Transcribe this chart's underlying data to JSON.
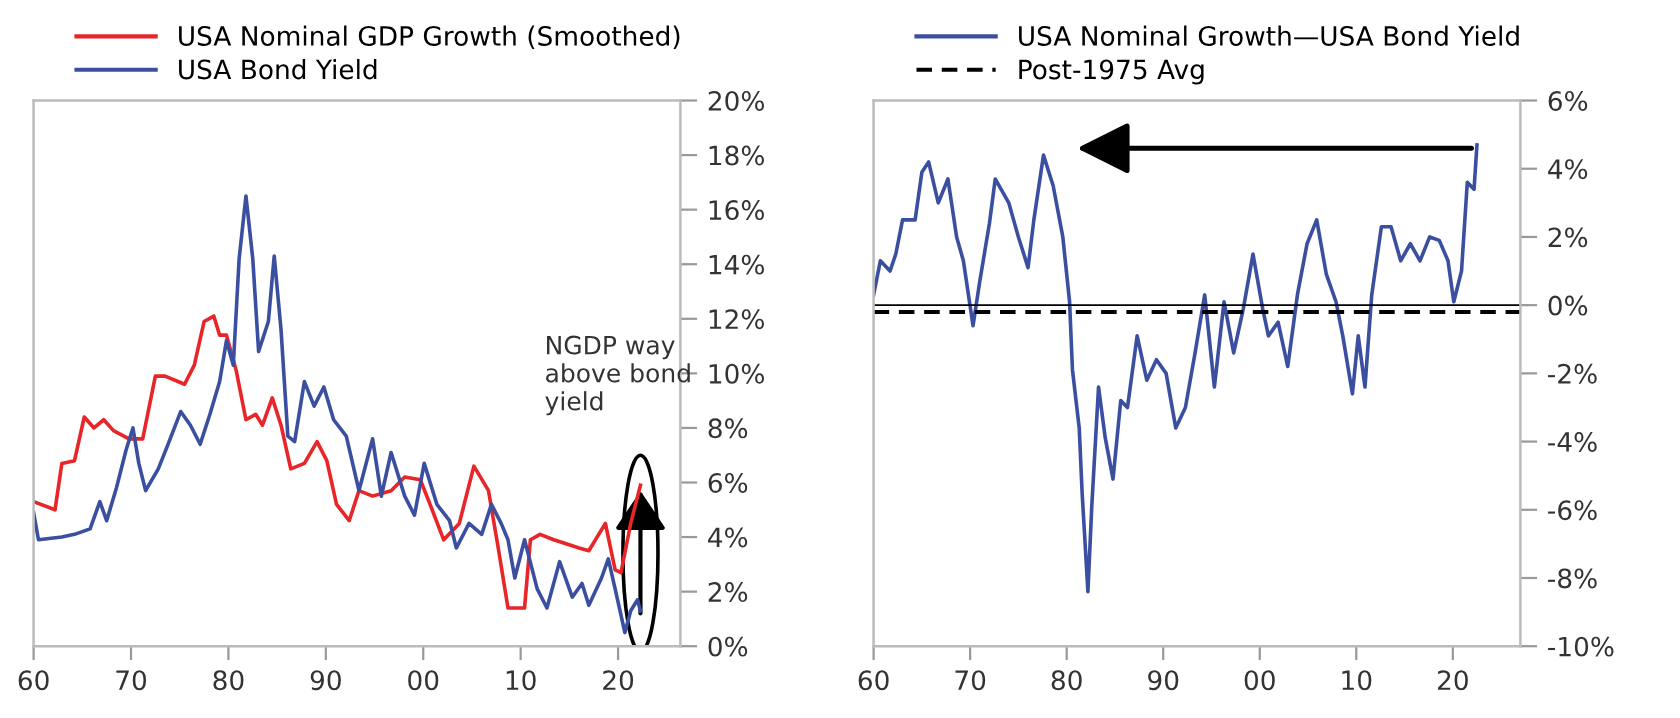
{
  "chart_data": [
    {
      "type": "line",
      "legend": "top",
      "xlim": [
        1960,
        2026.4
      ],
      "ylim": [
        0,
        20
      ],
      "xticks": [
        {
          "value": 1960,
          "label": "60"
        },
        {
          "value": 1970,
          "label": "70"
        },
        {
          "value": 1980,
          "label": "80"
        },
        {
          "value": 1990,
          "label": "90"
        },
        {
          "value": 2000,
          "label": "00"
        },
        {
          "value": 2010,
          "label": "10"
        },
        {
          "value": 2020,
          "label": "20"
        }
      ],
      "yticks": [
        {
          "value": 0,
          "label": "0%"
        },
        {
          "value": 2,
          "label": "2%"
        },
        {
          "value": 4,
          "label": "4%"
        },
        {
          "value": 6,
          "label": "6%"
        },
        {
          "value": 8,
          "label": "8%"
        },
        {
          "value": 10,
          "label": "10%"
        },
        {
          "value": 12,
          "label": "12%"
        },
        {
          "value": 14,
          "label": "14%"
        },
        {
          "value": 16,
          "label": "16%"
        },
        {
          "value": 18,
          "label": "18%"
        },
        {
          "value": 20,
          "label": "20%"
        }
      ],
      "annotations": [
        {
          "text": "NGDP way\nabove bond\nyield",
          "x": 2022.3,
          "y": 5.9
        }
      ],
      "series": [
        {
          "name": "USA Nominal GDP Growth (Smoothed)",
          "color": "#e8262a",
          "x": [
            1960,
            1962.2,
            1962.9,
            1964.2,
            1965.2,
            1966.2,
            1967.2,
            1968.2,
            1969.8,
            1971.2,
            1972.5,
            1973.5,
            1975.5,
            1976.5,
            1977.5,
            1978.5,
            1979.1,
            1979.8,
            1980.8,
            1981.8,
            1982.8,
            1983.5,
            1984.5,
            1985.4,
            1986.4,
            1987.8,
            1989.1,
            1990.1,
            1991.1,
            1992.4,
            1993.4,
            1994.8,
            1996.7,
            1998.1,
            1999.7,
            2000.7,
            2002.1,
            2003.7,
            2005.2,
            2006.7,
            2007.7,
            2008.7,
            2010.4,
            2011,
            2012,
            2013.4,
            2016,
            2017,
            2018.7,
            2019.7,
            2020.3,
            2021.3,
            2022.3
          ],
          "values": [
            5.3,
            5.0,
            6.7,
            6.8,
            8.4,
            8.0,
            8.3,
            7.9,
            7.6,
            7.6,
            9.9,
            9.9,
            9.6,
            10.3,
            11.9,
            12.1,
            11.4,
            11.4,
            10.1,
            8.3,
            8.5,
            8.1,
            9.1,
            8.1,
            6.5,
            6.7,
            7.5,
            6.8,
            5.2,
            4.6,
            5.7,
            5.5,
            5.7,
            6.2,
            6.1,
            5.2,
            3.9,
            4.5,
            6.6,
            5.7,
            3.6,
            1.4,
            1.4,
            3.9,
            4.1,
            3.9,
            3.6,
            3.5,
            4.5,
            2.8,
            2.7,
            4.5,
            5.9
          ]
        },
        {
          "name": "USA Bond Yield",
          "color": "#3b4fa0",
          "x": [
            1960,
            1960.5,
            1962.9,
            1964.2,
            1965.8,
            1966.8,
            1967.5,
            1968.5,
            1969.5,
            1970.2,
            1970.8,
            1971.5,
            1972.8,
            1973.8,
            1975.1,
            1976.1,
            1977.1,
            1978.1,
            1979.1,
            1979.8,
            1980.5,
            1981.1,
            1981.8,
            1982.5,
            1983.1,
            1984.1,
            1984.7,
            1985.4,
            1986.1,
            1986.8,
            1987.8,
            1988.8,
            1989.8,
            1990.8,
            1992.1,
            1993.4,
            1994.8,
            1995.7,
            1996.7,
            1998.1,
            1999.1,
            2000.1,
            2001.4,
            2002.7,
            2003.4,
            2004.7,
            2006,
            2007,
            2008,
            2008.7,
            2009.4,
            2010.4,
            2011.7,
            2012.7,
            2014,
            2015.3,
            2016.3,
            2017,
            2018.3,
            2019,
            2019.7,
            2020.7,
            2021.3,
            2022,
            2022.3
          ],
          "values": [
            4.9,
            3.9,
            4.0,
            4.1,
            4.3,
            5.3,
            4.6,
            5.8,
            7.2,
            8.0,
            6.7,
            5.7,
            6.5,
            7.4,
            8.6,
            8.1,
            7.4,
            8.5,
            9.7,
            11.2,
            10.3,
            14.2,
            16.5,
            14.2,
            10.8,
            11.9,
            14.3,
            11.6,
            7.7,
            7.5,
            9.7,
            8.8,
            9.5,
            8.3,
            7.7,
            5.7,
            7.6,
            5.5,
            7.1,
            5.5,
            4.8,
            6.7,
            5.2,
            4.6,
            3.6,
            4.5,
            4.1,
            5.2,
            4.5,
            3.9,
            2.5,
            3.9,
            2.1,
            1.4,
            3.1,
            1.8,
            2.3,
            1.5,
            2.5,
            3.2,
            2.1,
            0.5,
            1.3,
            1.7,
            1.3
          ]
        }
      ]
    },
    {
      "type": "line",
      "legend": "top",
      "xlim": [
        1960,
        2027
      ],
      "ylim": [
        -10,
        6
      ],
      "xticks": [
        {
          "value": 1960,
          "label": "60"
        },
        {
          "value": 1970,
          "label": "70"
        },
        {
          "value": 1980,
          "label": "80"
        },
        {
          "value": 1990,
          "label": "90"
        },
        {
          "value": 2000,
          "label": "00"
        },
        {
          "value": 2010,
          "label": "10"
        },
        {
          "value": 2020,
          "label": "20"
        }
      ],
      "yticks": [
        {
          "value": -10,
          "label": "-10%"
        },
        {
          "value": -8,
          "label": "-8%"
        },
        {
          "value": -6,
          "label": "-6%"
        },
        {
          "value": -4,
          "label": "-4%"
        },
        {
          "value": -2,
          "label": "-2%"
        },
        {
          "value": 0,
          "label": "0%"
        },
        {
          "value": 2,
          "label": "2%"
        },
        {
          "value": 4,
          "label": "4%"
        },
        {
          "value": 6,
          "label": "6%"
        }
      ],
      "ref_lines": [
        {
          "axis": "y",
          "value": 0,
          "color": "#000000",
          "line_style": "solid"
        },
        {
          "axis": "y",
          "value": -0.2,
          "label": "Post-1975 Avg",
          "color": "#000000",
          "line_style": "dashed"
        }
      ],
      "series": [
        {
          "name": "USA Nominal Growth—USA Bond Yield",
          "color": "#3b4fa0",
          "x": [
            1960,
            1960.7,
            1961.7,
            1962.3,
            1963,
            1964.3,
            1965,
            1965.7,
            1966.7,
            1967.7,
            1968.6,
            1969.3,
            1970.3,
            1971,
            1972,
            1972.6,
            1974,
            1975,
            1976,
            1976.6,
            1977.6,
            1978.6,
            1979.6,
            1980.3,
            1980.6,
            1981.3,
            1981.6,
            1982.2,
            1982.6,
            1983.3,
            1984,
            1984.8,
            1985.6,
            1986.3,
            1987.3,
            1988.3,
            1989.3,
            1990.3,
            1991.3,
            1992.3,
            1993.3,
            1994.3,
            1995.3,
            1996.3,
            1997.3,
            1998.3,
            1999.3,
            2000.3,
            2000.9,
            2001.9,
            2002.9,
            2003.9,
            2004.9,
            2005.9,
            2006.9,
            2007.9,
            2008.6,
            2009.6,
            2010.2,
            2010.9,
            2011.6,
            2012.6,
            2013.6,
            2014.6,
            2015.6,
            2016.6,
            2017.6,
            2018.6,
            2019.5,
            2020.1,
            2020.9,
            2021.5,
            2022.2,
            2022.5
          ],
          "values": [
            0.3,
            1.3,
            1.0,
            1.5,
            2.5,
            2.5,
            3.9,
            4.2,
            3.0,
            3.7,
            2.0,
            1.3,
            -0.6,
            0.7,
            2.4,
            3.7,
            3.0,
            2.0,
            1.1,
            2.5,
            4.4,
            3.5,
            2.0,
            0.1,
            -1.9,
            -3.6,
            -5.5,
            -8.4,
            -5.9,
            -2.4,
            -3.9,
            -5.1,
            -2.8,
            -3.0,
            -0.9,
            -2.2,
            -1.6,
            -2.0,
            -3.6,
            -3.0,
            -1.4,
            0.3,
            -2.4,
            0.1,
            -1.4,
            -0.1,
            1.5,
            -0.1,
            -0.9,
            -0.5,
            -1.8,
            0.3,
            1.8,
            2.5,
            0.9,
            0.1,
            -0.9,
            -2.6,
            -0.9,
            -2.4,
            0.3,
            2.3,
            2.3,
            1.3,
            1.8,
            1.3,
            2.0,
            1.9,
            1.3,
            0.1,
            1.0,
            3.6,
            3.4,
            4.7
          ]
        }
      ]
    }
  ]
}
